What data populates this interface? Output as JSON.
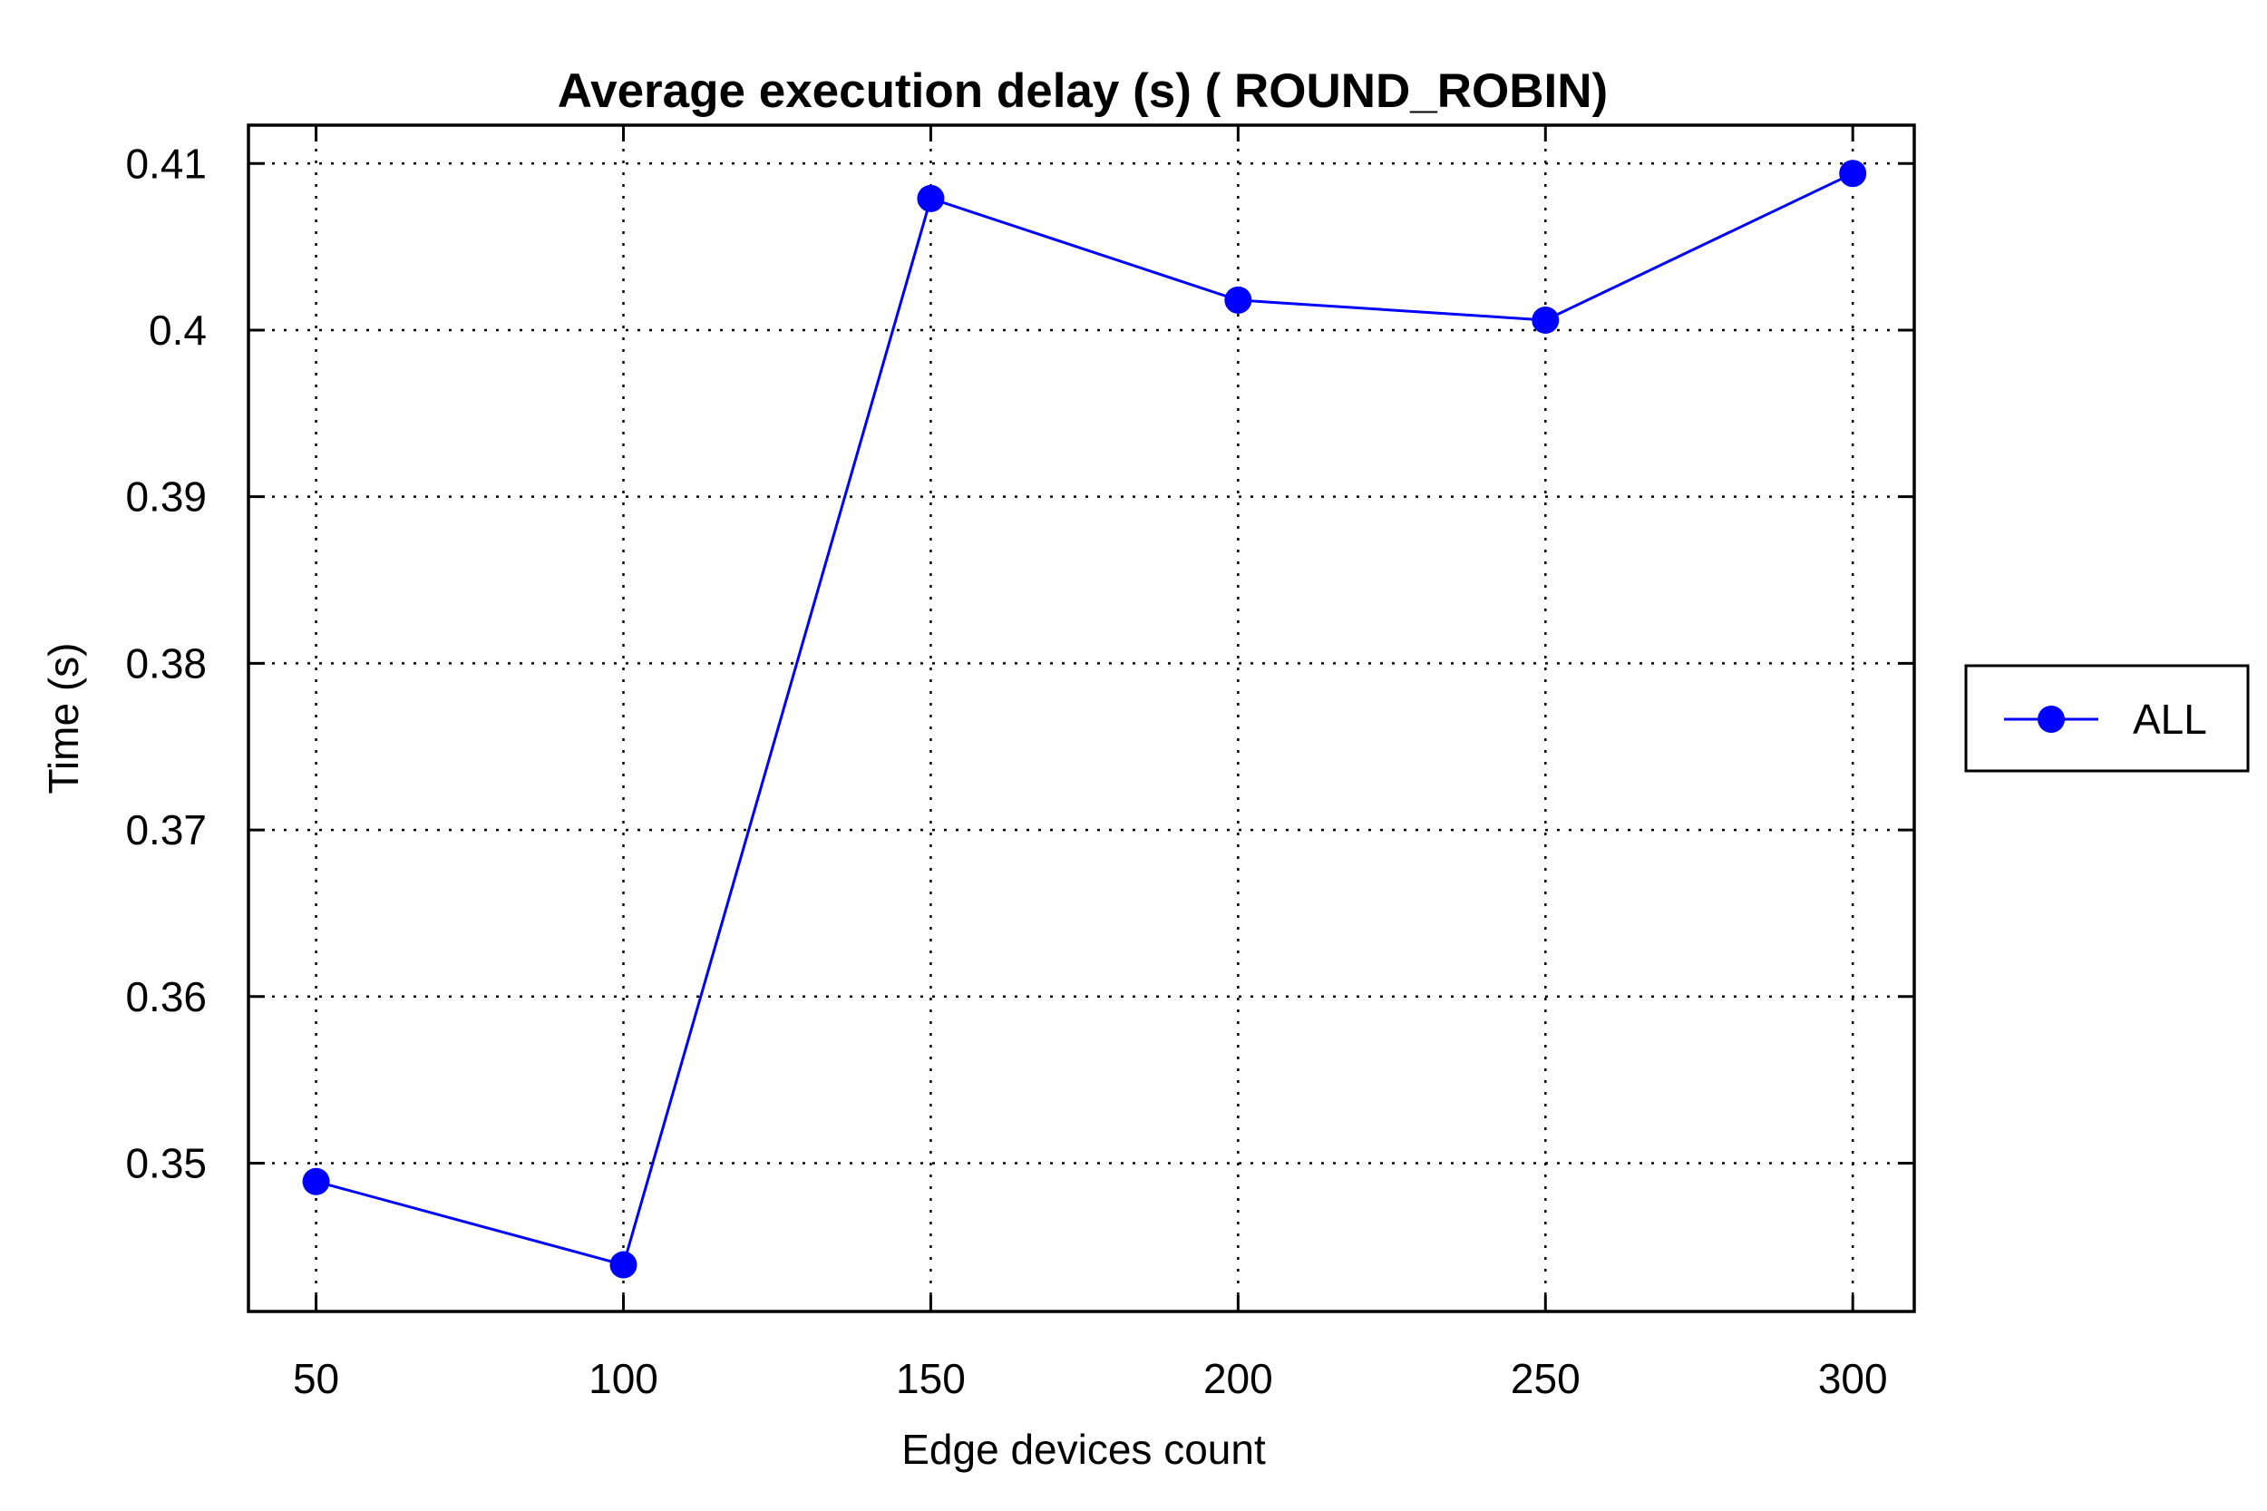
{
  "chart_data": {
    "type": "line",
    "title": "Average execution delay (s) ( ROUND_ROBIN)",
    "xlabel": "Edge devices count",
    "ylabel": "Time (s)",
    "x": [
      50,
      100,
      150,
      200,
      250,
      300
    ],
    "xticks": [
      "50",
      "100",
      "150",
      "200",
      "250",
      "300"
    ],
    "yticks": [
      "0.35",
      "0.36",
      "0.37",
      "0.38",
      "0.39",
      "0.4",
      "0.41"
    ],
    "ytick_values": [
      0.35,
      0.36,
      0.37,
      0.38,
      0.39,
      0.4,
      0.41
    ],
    "xlim": [
      39,
      310
    ],
    "ylim": [
      0.3411,
      0.4123
    ],
    "grid": true,
    "legend_position": "right-outside",
    "series": [
      {
        "name": "ALL",
        "color": "#0000ff",
        "marker": "circle",
        "values": [
          0.3489,
          0.3439,
          0.4079,
          0.4018,
          0.4006,
          0.4094
        ]
      }
    ]
  }
}
